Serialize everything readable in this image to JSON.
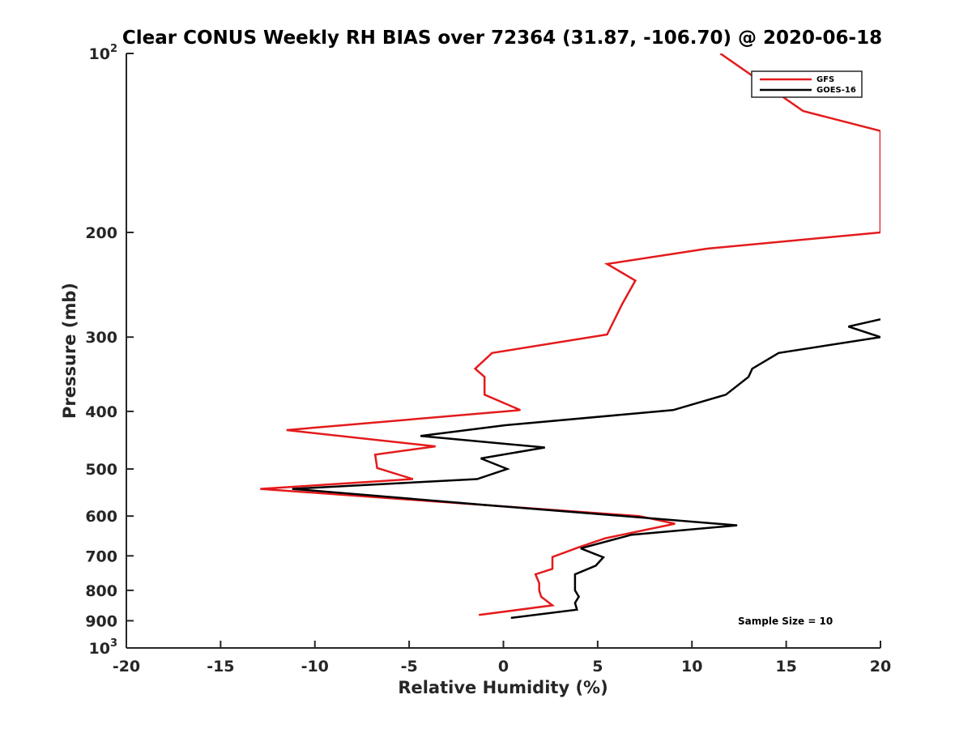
{
  "chart_data": {
    "type": "line",
    "title": "Clear CONUS Weekly RH BIAS over 72364 (31.87, -106.70) @ 2020-06-18",
    "xlabel": "Relative Humidity (%)",
    "ylabel": "Pressure (mb)",
    "xlim": [
      -20,
      20
    ],
    "ylim": [
      100,
      1000
    ],
    "y_scale": "log",
    "y_reversed": true,
    "grid": false,
    "legend_position": "top-right",
    "x_ticks": [
      {
        "value": -20,
        "label": "-20"
      },
      {
        "value": -15,
        "label": "-15"
      },
      {
        "value": -10,
        "label": "-10"
      },
      {
        "value": -5,
        "label": "-5"
      },
      {
        "value": 0,
        "label": "0"
      },
      {
        "value": 5,
        "label": "5"
      },
      {
        "value": 10,
        "label": "10"
      },
      {
        "value": 15,
        "label": "15"
      },
      {
        "value": 20,
        "label": "20"
      }
    ],
    "y_ticks": [
      {
        "value": 100,
        "base": "10",
        "exp": "2"
      },
      {
        "value": 200,
        "base": "200",
        "exp": ""
      },
      {
        "value": 300,
        "base": "300",
        "exp": ""
      },
      {
        "value": 400,
        "base": "400",
        "exp": ""
      },
      {
        "value": 500,
        "base": "500",
        "exp": ""
      },
      {
        "value": 600,
        "base": "600",
        "exp": ""
      },
      {
        "value": 700,
        "base": "700",
        "exp": ""
      },
      {
        "value": 800,
        "base": "800",
        "exp": ""
      },
      {
        "value": 900,
        "base": "900",
        "exp": ""
      },
      {
        "value": 1000,
        "base": "10",
        "exp": "3"
      }
    ],
    "series": [
      {
        "name": "GFS",
        "color": "#e41a1c",
        "points": [
          {
            "x": 11.5,
            "y": 100
          },
          {
            "x": 15.9,
            "y": 125
          },
          {
            "x": 20.0,
            "y": 135
          },
          {
            "x": 20.0,
            "y": 200
          },
          {
            "x": 10.8,
            "y": 213
          },
          {
            "x": 5.5,
            "y": 226
          },
          {
            "x": 7.0,
            "y": 241
          },
          {
            "x": 6.3,
            "y": 264
          },
          {
            "x": 5.5,
            "y": 297
          },
          {
            "x": -0.6,
            "y": 319
          },
          {
            "x": -1.5,
            "y": 339
          },
          {
            "x": -1.0,
            "y": 350
          },
          {
            "x": -1.0,
            "y": 375
          },
          {
            "x": 0.9,
            "y": 398
          },
          {
            "x": -11.5,
            "y": 430
          },
          {
            "x": -3.6,
            "y": 458
          },
          {
            "x": -6.8,
            "y": 473
          },
          {
            "x": -6.7,
            "y": 498
          },
          {
            "x": -4.8,
            "y": 520
          },
          {
            "x": -12.9,
            "y": 540
          },
          {
            "x": 7.2,
            "y": 600
          },
          {
            "x": 9.1,
            "y": 618
          },
          {
            "x": 5.4,
            "y": 654
          },
          {
            "x": 4.0,
            "y": 677
          },
          {
            "x": 2.6,
            "y": 703
          },
          {
            "x": 2.6,
            "y": 736
          },
          {
            "x": 1.7,
            "y": 752
          },
          {
            "x": 1.9,
            "y": 778
          },
          {
            "x": 1.9,
            "y": 800
          },
          {
            "x": 2.0,
            "y": 820
          },
          {
            "x": 2.6,
            "y": 848
          },
          {
            "x": -1.3,
            "y": 880
          }
        ]
      },
      {
        "name": "GOES-16",
        "color": "#000000",
        "points": [
          {
            "x": 20.0,
            "y": 280
          },
          {
            "x": 18.3,
            "y": 288
          },
          {
            "x": 20.0,
            "y": 300
          },
          {
            "x": 14.6,
            "y": 319
          },
          {
            "x": 13.2,
            "y": 339
          },
          {
            "x": 13.0,
            "y": 350
          },
          {
            "x": 11.8,
            "y": 375
          },
          {
            "x": 9.0,
            "y": 398
          },
          {
            "x": 0.1,
            "y": 422
          },
          {
            "x": -4.4,
            "y": 440
          },
          {
            "x": 2.2,
            "y": 460
          },
          {
            "x": -1.2,
            "y": 480
          },
          {
            "x": 0.2,
            "y": 500
          },
          {
            "x": -1.4,
            "y": 520
          },
          {
            "x": -11.2,
            "y": 540
          },
          {
            "x": -0.3,
            "y": 577
          },
          {
            "x": 5.8,
            "y": 598
          },
          {
            "x": 12.4,
            "y": 622
          },
          {
            "x": 6.8,
            "y": 645
          },
          {
            "x": 4.1,
            "y": 680
          },
          {
            "x": 5.3,
            "y": 704
          },
          {
            "x": 4.9,
            "y": 727
          },
          {
            "x": 3.8,
            "y": 752
          },
          {
            "x": 3.8,
            "y": 800
          },
          {
            "x": 4.0,
            "y": 820
          },
          {
            "x": 3.8,
            "y": 840
          },
          {
            "x": 3.9,
            "y": 862
          },
          {
            "x": 0.4,
            "y": 890
          }
        ]
      }
    ],
    "annotations": [
      {
        "text": "Sample Size = 10"
      }
    ]
  }
}
